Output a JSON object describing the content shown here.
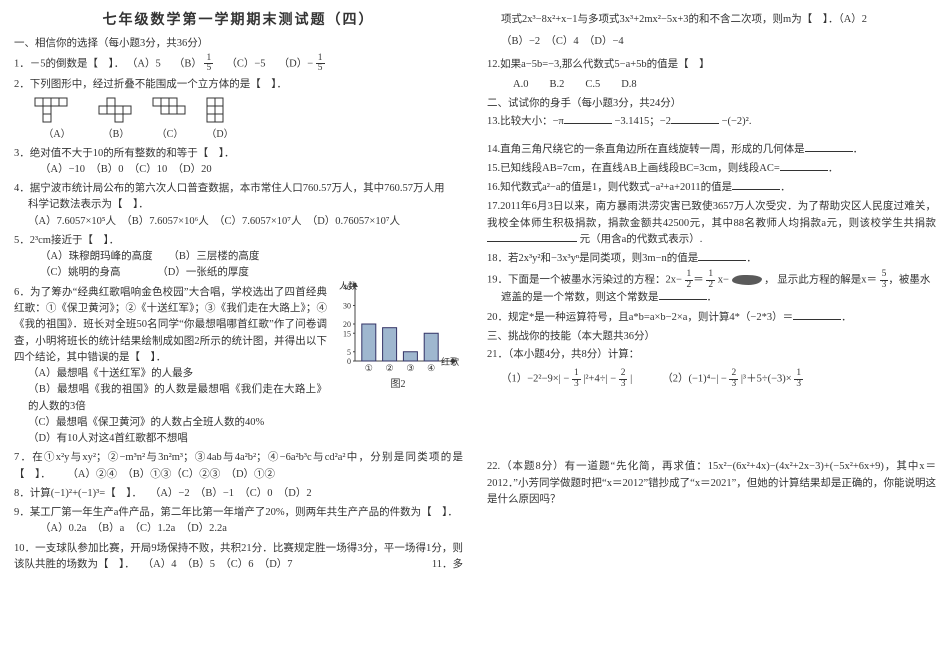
{
  "title": "七年级数学第一学期期末测试题（四）",
  "sec1": "一、相信你的选择（每小题3分，共36分）",
  "q1": {
    "stem": "1．－5的倒数是【　】．",
    "a": "（A）5",
    "b": "（B）",
    "c": "（C）−5",
    "d": "（D）−",
    "fracT": "1",
    "fracB": "5"
  },
  "q2": {
    "stem": "2．下列图形中，经过折叠不能围成一个立方体的是【　】．",
    "la": "（A）",
    "lb": "（B）",
    "lc": "（C）",
    "ld": "（D）"
  },
  "q3": {
    "stem": "3．绝对值不大于10的所有整数的和等于【　】．",
    "opts": "（A）−10　（B）0　（C）10　（D）20"
  },
  "q4": {
    "stem": "4．据宁波市统计局公布的第六次人口普查数据，本市常住人口760.57万人，其中760.57万人用",
    "sub": "科学记数法表示为【　】．",
    "opts": "（A）7.6057×10⁵人　（B）7.6057×10⁶人　（C）7.6057×10⁷人　（D）0.76057×10⁷人"
  },
  "q5": {
    "stem": "5．2³cm接近于【　】．",
    "a": "（A）珠穆朗玛峰的高度",
    "b": "（B）三层楼的高度",
    "c": "（C）姚明的身高",
    "d": "（D）一张纸的厚度"
  },
  "q6": {
    "stem": "6．为了筹办“经典红歌唱响金色校园”大合唱，学校选出了四首经典红歌：①《保卫黄河》；②《十送红军》；③《我们走在大路上》；④《我的祖国》．班长对全班50名同学“你最想唱哪首红歌”作了问卷调查，小明将班长的统计结果绘制成如图2所示的统计图，并得出以下四个结论，其中错误的是【　】．",
    "a": "（A）最想唱《十送红军》的人最多",
    "b": "（B）最想唱《我的祖国》的人数是最想唱《我们走在大路上》的人数的3倍",
    "c": "（C）最想唱《保卫黄河》的人数占全班人数的40%",
    "d": "（D）有10人对这4首红歌都不想唱",
    "chart": {
      "ylab": "人数",
      "yticks": [
        0,
        5,
        15,
        20,
        30,
        40
      ],
      "xlabs": [
        "①",
        "②",
        "③",
        "④"
      ],
      "xname": "红歌",
      "bars": [
        20,
        18,
        5,
        15
      ],
      "ymax": 40,
      "fig": "图2",
      "barColor": "#9fb7cf",
      "axisColor": "#444"
    }
  },
  "q7": {
    "stem": "7．在①x²y与xy²；②−m³n²与3n²m³；③4ab与4a²b²；④−6a²b³c与cd²a²中，分别是同类项的是【　】．",
    "opts": "（A）②④　（B）①③（C）②③　（D）①②"
  },
  "q8": {
    "stem": "8．计算(−1)²+(−1)³=【　】．",
    "opts": "（A）−2　（B）−1　（C）0　（D）2"
  },
  "q9": {
    "stem": "9．某工厂第一年生产a件产品，第二年比第一年增产了20%，则两年共生产产品的件数为【　】．",
    "opts": "（A）0.2a　（B）a　（C）1.2a　（D）2.2a"
  },
  "q10": {
    "stem": "10．一支球队参加比赛，开局9场保持不败，共积21分．比赛规定胜一场得3分，平一场得1分，则该队共胜的场数为【　】．",
    "opts": "（A）4　（B）5　（C）6　（D）7"
  },
  "q11": {
    "pre": "11．多",
    "stem": "项式2x³−8x²+x−1与多项式3x³+2mx²−5x+3的和不含二次项，则m为【　】．（A）2",
    "opts": "（B）−2　（C）4　（D）−4"
  },
  "q12": {
    "stem": "12.如果a−5b=−3,那么代数式5−a+5b的值是【　】",
    "opts": "A.0　　B.2　　C.5　　D.8"
  },
  "sec2": "二、试试你的身手（每小题3分，共24分）",
  "q13": {
    "stem": "13.比较大小：−π",
    "mid": "−3.1415；−2",
    "end": "−(−2)²."
  },
  "q14": {
    "stem": "14.直角三角尺绕它的一条直角边所在直线旋转一周，形成的几何体是"
  },
  "q15": {
    "stem": "15.已知线段AB=7cm，在直线AB上画线段BC=3cm，则线段AC="
  },
  "q16": {
    "stem": "16.知代数式a²−a的值是1，则代数式−a²+a+2011的值是"
  },
  "q17": {
    "stem": "17.2011年6月3日以来，南方暴雨洪涝灾害已致使3657万人次受灾．为了帮助灾区人民度过难关，我校全体师生积极捐款，捐款金额共42500元，其中88名教师人均捐款a元，则该校学生共捐款",
    "tail": "元（用含a的代数式表示）."
  },
  "q18": {
    "stem": "18．若2x³y²和−3x³yⁿ是同类项，则3m−n的值是"
  },
  "q19": {
    "stem": "19．下面是一个被墨水污染过的方程：2x−",
    "eq2": "x−",
    "mid": "，",
    "ans": "显示此方程的解是x＝",
    "sub": "遮盖的是一个常数，则这个常数是",
    "fracT": "1",
    "fracB": "2",
    "fracT2": "1",
    "fracB2": "2",
    "fracT3": "5",
    "fracB3": "3"
  },
  "q20": {
    "stem": "20．规定*是一种运算符号，且a*b=a×b−2×a，则计算4*（−2*3）＝"
  },
  "sec3": "三、挑战你的技能（本大题共36分）",
  "sec3a": "21．（本小题4分，共8分）计算：",
  "calc1": "（1）−2²−9×| −",
  "calc1b": "|²+4÷| −",
  "calc1c": "|",
  "calc2": "（2）(−1)⁴−| −",
  "calc2b": "|³＋5÷(−3)×",
  "f13": "1",
  "f13b": "3",
  "f23": "2",
  "f23b": "3",
  "q22": {
    "stem": "22.（本题8分）有一道题“先化简，再求值：15x²−(6x²+4x)−(4x²+2x−3)+(−5x²+6x+9)，其中x＝2012．”小芳同学做题时把“x＝2012”错抄成了“x＝2021”，但她的计算结果却是正确的，你能说明这是什么原因吗？"
  }
}
